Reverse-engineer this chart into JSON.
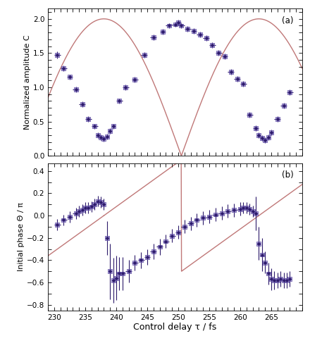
{
  "panel_a": {
    "data_x": [
      230.5,
      231.5,
      232.5,
      233.5,
      234.5,
      235.5,
      236.5,
      237.0,
      237.5,
      238.0,
      238.5,
      239.0,
      239.5,
      240.5,
      241.5,
      243.0,
      244.5,
      246.0,
      247.5,
      248.5,
      249.5,
      250.0,
      250.5,
      251.5,
      252.5,
      253.5,
      254.5,
      255.5,
      256.5,
      257.5,
      258.5,
      259.5,
      260.5,
      261.5,
      262.5,
      263.0,
      263.5,
      264.0,
      264.5,
      265.0,
      266.0,
      267.0,
      268.0
    ],
    "data_y": [
      1.47,
      1.28,
      1.15,
      0.97,
      0.75,
      0.54,
      0.43,
      0.3,
      0.27,
      0.25,
      0.28,
      0.36,
      0.43,
      0.8,
      1.0,
      1.11,
      1.47,
      1.73,
      1.81,
      1.9,
      1.92,
      1.95,
      1.9,
      1.85,
      1.82,
      1.77,
      1.72,
      1.62,
      1.5,
      1.45,
      1.23,
      1.12,
      1.05,
      0.6,
      0.4,
      0.3,
      0.26,
      0.23,
      0.27,
      0.34,
      0.54,
      0.73,
      0.93
    ],
    "err_x": [
      0.5,
      0.5,
      0.5,
      0.5,
      0.5,
      0.5,
      0.5,
      0.3,
      0.3,
      0.3,
      0.3,
      0.3,
      0.3,
      0.5,
      0.5,
      0.5,
      0.5,
      0.5,
      0.5,
      0.5,
      0.5,
      0.5,
      0.5,
      0.5,
      0.5,
      0.5,
      0.5,
      0.5,
      0.5,
      0.5,
      0.5,
      0.5,
      0.5,
      0.5,
      0.5,
      0.3,
      0.3,
      0.3,
      0.3,
      0.3,
      0.5,
      0.5,
      0.5
    ],
    "err_y": [
      0.05,
      0.04,
      0.04,
      0.04,
      0.04,
      0.04,
      0.04,
      0.04,
      0.04,
      0.04,
      0.04,
      0.04,
      0.04,
      0.04,
      0.04,
      0.04,
      0.04,
      0.04,
      0.04,
      0.04,
      0.04,
      0.04,
      0.04,
      0.04,
      0.04,
      0.04,
      0.04,
      0.04,
      0.04,
      0.04,
      0.04,
      0.04,
      0.04,
      0.04,
      0.04,
      0.04,
      0.04,
      0.04,
      0.04,
      0.04,
      0.04,
      0.04,
      0.04
    ],
    "ylim": [
      0.0,
      2.15
    ],
    "yticks": [
      0.0,
      0.5,
      1.0,
      1.5,
      2.0
    ],
    "ylabel": "Normalized amplitude C",
    "label": "(a)"
  },
  "panel_b": {
    "data_x": [
      230.5,
      231.5,
      232.5,
      233.5,
      234.0,
      234.5,
      235.0,
      235.5,
      236.0,
      236.5,
      237.0,
      237.5,
      238.0,
      238.5,
      239.0,
      239.5,
      240.0,
      240.5,
      241.0,
      242.0,
      243.0,
      244.0,
      245.0,
      246.0,
      247.0,
      248.0,
      249.0,
      250.0,
      251.0,
      252.0,
      253.0,
      254.0,
      255.0,
      256.0,
      257.0,
      258.0,
      259.0,
      260.0,
      260.5,
      261.0,
      261.5,
      262.0,
      262.5,
      263.0,
      263.5,
      264.0,
      264.5,
      265.0,
      265.5,
      266.0,
      266.5,
      267.0,
      267.5,
      268.0
    ],
    "data_y": [
      -0.08,
      -0.04,
      -0.01,
      0.02,
      0.04,
      0.05,
      0.07,
      0.07,
      0.08,
      0.1,
      0.13,
      0.12,
      0.1,
      -0.2,
      -0.5,
      -0.58,
      -0.56,
      -0.52,
      -0.52,
      -0.5,
      -0.42,
      -0.4,
      -0.37,
      -0.32,
      -0.28,
      -0.23,
      -0.18,
      -0.15,
      -0.1,
      -0.07,
      -0.04,
      -0.02,
      -0.01,
      0.01,
      0.02,
      0.04,
      0.05,
      0.06,
      0.07,
      0.07,
      0.06,
      0.04,
      0.02,
      -0.25,
      -0.35,
      -0.42,
      -0.52,
      -0.57,
      -0.58,
      -0.58,
      -0.57,
      -0.58,
      -0.58,
      -0.57
    ],
    "err_x": [
      0.5,
      0.5,
      0.5,
      0.5,
      0.3,
      0.3,
      0.3,
      0.3,
      0.3,
      0.3,
      0.3,
      0.3,
      0.3,
      0.3,
      0.3,
      0.3,
      0.3,
      0.5,
      0.5,
      0.5,
      0.5,
      0.5,
      0.5,
      0.5,
      0.5,
      0.5,
      0.5,
      0.5,
      0.5,
      0.5,
      0.5,
      0.5,
      0.5,
      0.5,
      0.5,
      0.5,
      0.5,
      0.5,
      0.3,
      0.3,
      0.3,
      0.3,
      0.3,
      0.3,
      0.3,
      0.3,
      0.3,
      0.3,
      0.3,
      0.3,
      0.3,
      0.3,
      0.3,
      0.3
    ],
    "err_y": [
      0.05,
      0.05,
      0.05,
      0.05,
      0.05,
      0.05,
      0.05,
      0.05,
      0.05,
      0.05,
      0.05,
      0.05,
      0.05,
      0.15,
      0.25,
      0.2,
      0.2,
      0.15,
      0.15,
      0.1,
      0.07,
      0.07,
      0.07,
      0.07,
      0.07,
      0.06,
      0.06,
      0.06,
      0.06,
      0.06,
      0.06,
      0.06,
      0.06,
      0.06,
      0.06,
      0.06,
      0.06,
      0.06,
      0.05,
      0.05,
      0.05,
      0.05,
      0.15,
      0.15,
      0.15,
      0.1,
      0.1,
      0.1,
      0.08,
      0.07,
      0.07,
      0.07,
      0.07,
      0.07
    ],
    "ylim": [
      -0.85,
      0.47
    ],
    "yticks": [
      -0.8,
      -0.6,
      -0.4,
      -0.2,
      0.0,
      0.2,
      0.4
    ],
    "ylabel": "Initial phase Θ / π",
    "label": "(b)"
  },
  "xlabel": "Control delay τ / fs",
  "xlim": [
    229,
    270
  ],
  "xticks": [
    230,
    235,
    240,
    245,
    250,
    255,
    260,
    265
  ],
  "line_color": "#c07878",
  "marker_facecolor": "#2d1b6b",
  "marker_edgecolor": "#6655aa",
  "background_color": "#ffffff",
  "phonon_period": 25.0,
  "tau_min1": 238.0,
  "tau_min2": 263.0
}
